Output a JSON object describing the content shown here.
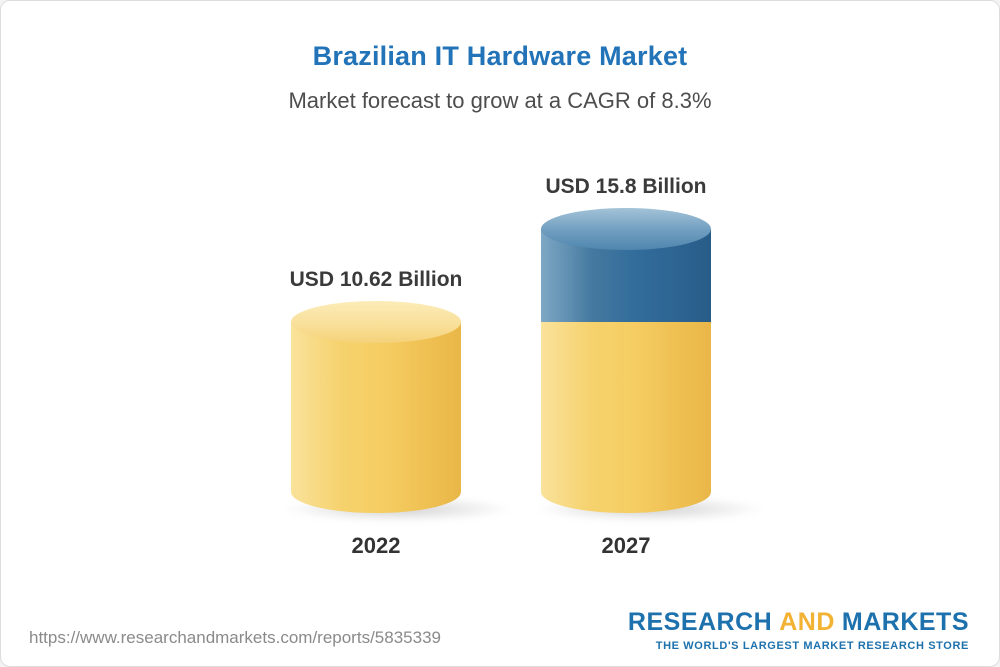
{
  "header": {
    "title": "Brazilian IT Hardware Market",
    "subtitle": "Market forecast to grow at a CAGR of 8.3%"
  },
  "chart_data": {
    "type": "bar",
    "variant": "3d-cylinder",
    "title": "Brazilian IT Hardware Market",
    "subtitle": "Market forecast to grow at a CAGR of 8.3%",
    "unit": "USD Billion",
    "cagr": "8.3%",
    "categories": [
      "2022",
      "2027"
    ],
    "values": [
      10.62,
      15.8
    ],
    "xlabel": "",
    "ylabel": "",
    "legend": false,
    "gridlines": false,
    "bars": [
      {
        "year": "2022",
        "label": "USD 10.62 Billion",
        "value": 10.62,
        "segments": [
          {
            "color": "gold",
            "value": 10.62
          }
        ]
      },
      {
        "year": "2027",
        "label": "USD 15.8 Billion",
        "value": 15.8,
        "segments": [
          {
            "color": "blue",
            "value": 5.18
          },
          {
            "color": "gold",
            "value": 10.62
          }
        ]
      }
    ]
  },
  "footer": {
    "url": "https://www.researchandmarkets.com/reports/5835339",
    "logo": {
      "word1": "RESEARCH",
      "word2": "AND",
      "word3": "MARKETS",
      "tagline": "THE WORLD'S LARGEST MARKET RESEARCH STORE"
    }
  },
  "colors": {
    "title_blue": "#2273b8",
    "subtitle_gray": "#4d4d4d",
    "bar_gold": "#f5cd62",
    "bar_blue": "#326d9c",
    "logo_blue": "#1d71ad",
    "logo_gold": "#f2b233",
    "url_gray": "#8a8a8a"
  }
}
